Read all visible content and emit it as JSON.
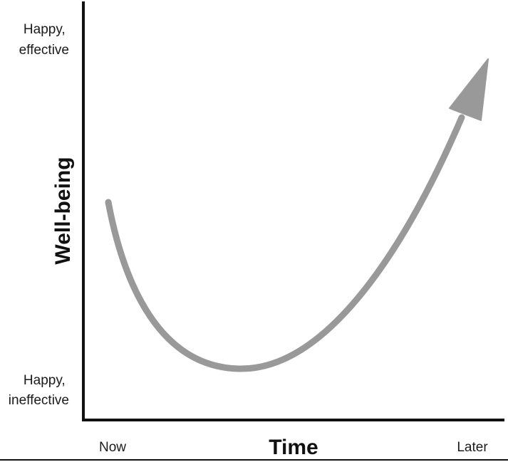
{
  "figure": {
    "y_axis": {
      "title": "Well-being",
      "top_label": [
        "Happy,",
        "effective"
      ],
      "bottom_label": [
        "Happy,",
        "ineffective"
      ]
    },
    "x_axis": {
      "title": "Time",
      "start_label": "Now",
      "end_label": "Later"
    },
    "curve": {
      "description_points": "starts mid-high at Now, dips to a low, rises steeply to Later",
      "color": "#999999"
    },
    "axis_color": "#111111"
  }
}
